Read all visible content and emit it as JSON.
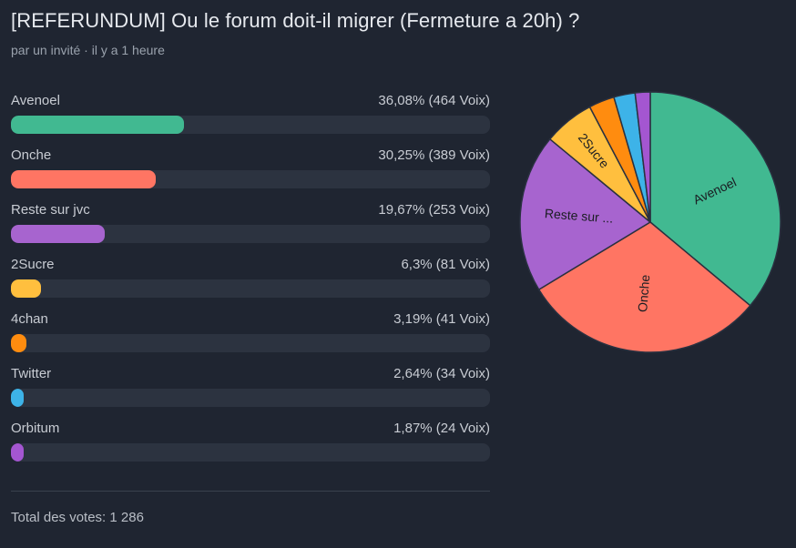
{
  "poll": {
    "title": "[REFERUNDUM] Ou le forum doit-il migrer (Fermeture a 20h) ?",
    "meta": "par un invité · il y a 1 heure",
    "total_label": "Total des votes: 1 286"
  },
  "colors": {
    "background": "#1f2531",
    "track": "#2c3340"
  },
  "chart_data": {
    "type": "pie",
    "total_votes": 1286,
    "categories": [
      "Avenoel",
      "Onche",
      "Reste sur jvc",
      "2Sucre",
      "4chan",
      "Twitter",
      "Orbitum"
    ],
    "values": [
      464,
      389,
      253,
      81,
      41,
      34,
      24
    ],
    "percent": [
      36.08,
      30.25,
      19.67,
      6.3,
      3.19,
      2.64,
      1.87
    ],
    "slice_labels": [
      "Avenoel",
      "Onche",
      "Reste sur ...",
      "2Sucre",
      "",
      "",
      ""
    ],
    "colors": [
      "#41b991",
      "#ff7563",
      "#a764cf",
      "#ffbf3e",
      "#ff8c0f",
      "#3db3e8",
      "#a456d1"
    ]
  },
  "options": [
    {
      "label": "Avenoel",
      "value_text": "36,08% (464 Voix)",
      "percent": 36.08,
      "color": "#41b991"
    },
    {
      "label": "Onche",
      "value_text": "30,25% (389 Voix)",
      "percent": 30.25,
      "color": "#ff7563"
    },
    {
      "label": "Reste sur jvc",
      "value_text": "19,67% (253 Voix)",
      "percent": 19.67,
      "color": "#a764cf"
    },
    {
      "label": "2Sucre",
      "value_text": "6,3% (81 Voix)",
      "percent": 6.3,
      "color": "#ffbf3e"
    },
    {
      "label": "4chan",
      "value_text": "3,19% (41 Voix)",
      "percent": 3.19,
      "color": "#ff8c0f"
    },
    {
      "label": "Twitter",
      "value_text": "2,64% (34 Voix)",
      "percent": 2.64,
      "color": "#3db3e8"
    },
    {
      "label": "Orbitum",
      "value_text": "1,87% (24 Voix)",
      "percent": 1.87,
      "color": "#a456d1"
    }
  ]
}
